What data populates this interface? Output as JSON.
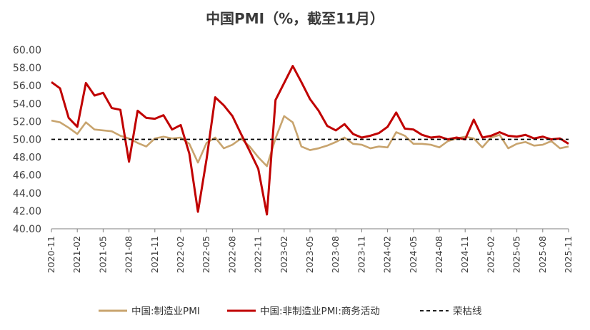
{
  "chart_data": {
    "type": "line",
    "title": "中国PMI（%，截至11月）",
    "xlabel": "",
    "ylabel": "",
    "ylim": [
      40,
      60
    ],
    "yticks": [
      "60.00",
      "58.00",
      "56.00",
      "54.00",
      "52.00",
      "50.00",
      "48.00",
      "46.00",
      "44.00",
      "42.00",
      "40.00"
    ],
    "x": [
      "2020-11",
      "2020-12",
      "2021-01",
      "2021-02",
      "2021-03",
      "2021-04",
      "2021-05",
      "2021-06",
      "2021-07",
      "2021-08",
      "2021-09",
      "2021-10",
      "2021-11",
      "2021-12",
      "2022-01",
      "2022-02",
      "2022-03",
      "2022-04",
      "2022-05",
      "2022-06",
      "2022-07",
      "2022-08",
      "2022-09",
      "2022-10",
      "2022-11",
      "2022-12",
      "2023-01",
      "2023-02",
      "2023-03",
      "2023-04",
      "2023-05",
      "2023-06",
      "2023-07",
      "2023-08",
      "2023-09",
      "2023-10",
      "2023-11",
      "2023-12",
      "2024-01",
      "2024-02",
      "2024-03",
      "2024-04",
      "2024-05",
      "2024-06",
      "2024-07",
      "2024-08",
      "2024-09",
      "2024-10",
      "2024-11",
      "2024-12",
      "2025-01",
      "2025-02",
      "2025-03",
      "2025-04",
      "2025-05",
      "2025-06",
      "2025-07",
      "2025-08",
      "2025-09",
      "2025-10",
      "2025-11"
    ],
    "xticks": [
      "2020-11",
      "2021-02",
      "2021-05",
      "2021-08",
      "2021-11",
      "2022-02",
      "2022-05",
      "2022-08",
      "2022-11",
      "2023-02",
      "2023-05",
      "2023-08",
      "2023-11",
      "2024-02",
      "2024-05",
      "2024-08",
      "2024-11",
      "2025-02",
      "2025-05",
      "2025-08",
      "2025-11"
    ],
    "series": [
      {
        "name": "中国:制造业PMI",
        "color": "#c8a46e",
        "values": [
          52.1,
          51.9,
          51.3,
          50.6,
          51.9,
          51.1,
          51.0,
          50.9,
          50.4,
          50.1,
          49.6,
          49.2,
          50.1,
          50.3,
          50.1,
          50.2,
          49.5,
          47.4,
          49.6,
          50.2,
          49.0,
          49.4,
          50.1,
          49.2,
          48.0,
          47.0,
          50.1,
          52.6,
          51.9,
          49.2,
          48.8,
          49.0,
          49.3,
          49.7,
          50.2,
          49.5,
          49.4,
          49.0,
          49.2,
          49.1,
          50.8,
          50.4,
          49.5,
          49.5,
          49.4,
          49.1,
          49.8,
          50.1,
          50.3,
          50.1,
          49.1,
          50.2,
          50.5,
          49.0,
          49.5,
          49.7,
          49.3,
          49.4,
          49.8,
          49.0,
          49.2
        ]
      },
      {
        "name": "中国:非制造业PMI:商务活动",
        "color": "#c00000",
        "values": [
          56.4,
          55.7,
          52.4,
          51.4,
          56.3,
          54.9,
          55.2,
          53.5,
          53.3,
          47.5,
          53.2,
          52.4,
          52.3,
          52.7,
          51.1,
          51.6,
          48.4,
          41.9,
          47.8,
          54.7,
          53.8,
          52.6,
          50.6,
          48.7,
          46.7,
          41.6,
          54.4,
          56.3,
          58.2,
          56.4,
          54.5,
          53.2,
          51.5,
          51.0,
          51.7,
          50.6,
          50.2,
          50.4,
          50.7,
          51.4,
          53.0,
          51.2,
          51.1,
          50.5,
          50.2,
          50.3,
          50.0,
          50.2,
          50.0,
          52.2,
          50.2,
          50.4,
          50.8,
          50.4,
          50.3,
          50.5,
          50.1,
          50.3,
          50.0,
          50.1,
          49.5
        ]
      }
    ],
    "reference_line": {
      "name": "荣枯线",
      "value": 50,
      "color": "#000000"
    },
    "legend_position": "bottom",
    "grid": false
  }
}
